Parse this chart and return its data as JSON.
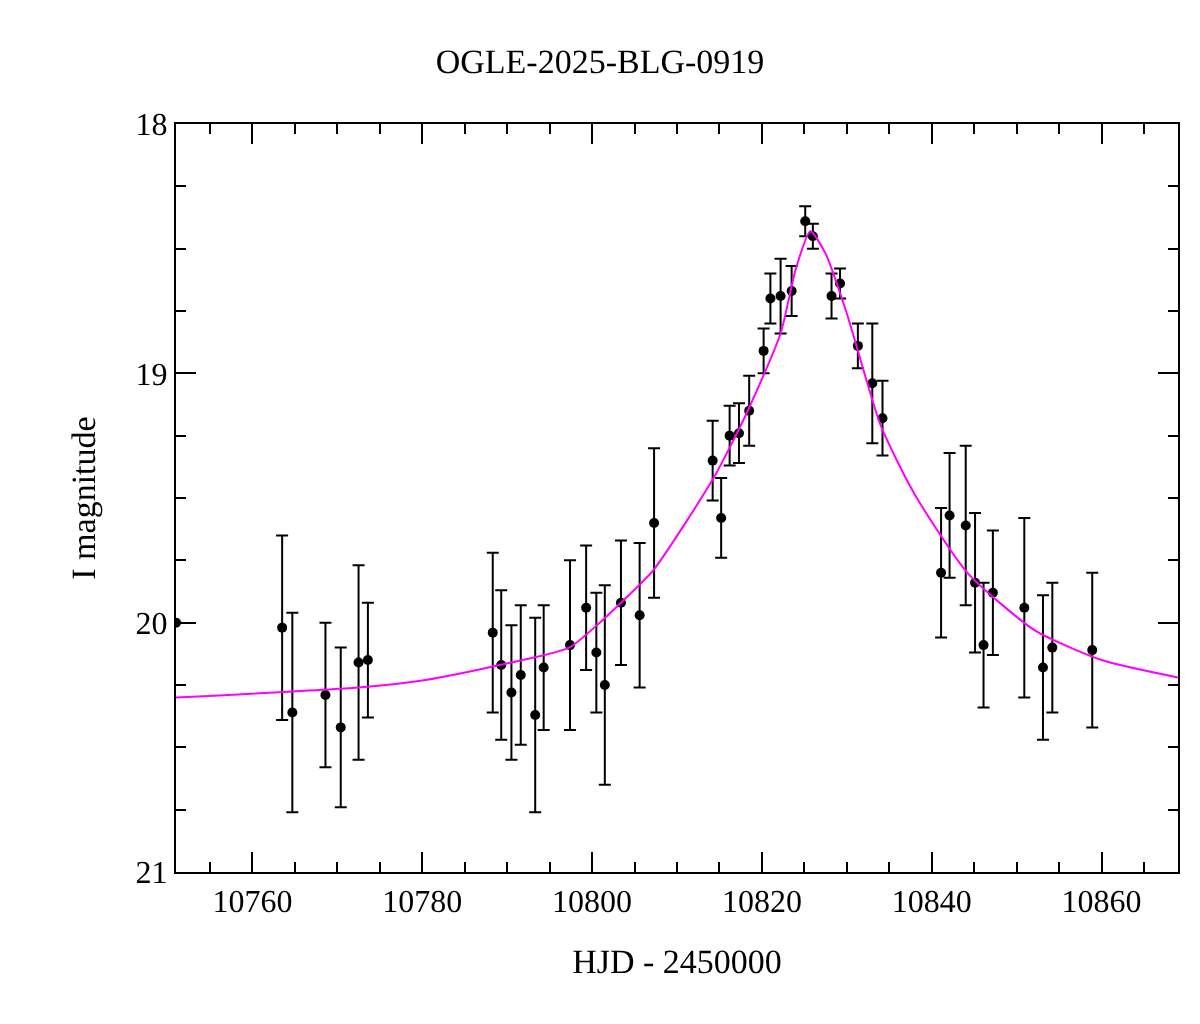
{
  "chart_data": {
    "type": "scatter",
    "title": "OGLE-2025-BLG-0919",
    "xlabel": "HJD - 2450000",
    "ylabel": "I magnitude",
    "xlim": [
      10751,
      10869
    ],
    "xticks": [
      10760,
      10780,
      10800,
      10820,
      10840,
      10860
    ],
    "ylim": [
      21,
      18
    ],
    "yticks": [
      18,
      19,
      20,
      21
    ],
    "marker": "circle",
    "series": [
      {
        "color": "#000000",
        "x": [
          10751,
          10763.5,
          10764.7,
          10768.6,
          10770.4,
          10772.5,
          10773.6,
          10788.3,
          10789.3,
          10790.5,
          10791.6,
          10793.3,
          10794.3,
          10797.4,
          10799.3,
          10800.5,
          10801.5,
          10803.4,
          10805.6,
          10807.3,
          10814.2,
          10815.2,
          10816.2,
          10817.3,
          10818.5,
          10820.2,
          10821.0,
          10822.2,
          10823.5,
          10825.1,
          10826.0,
          10828.2,
          10829.2,
          10831.3,
          10833.0,
          10834.2,
          10841.1,
          10842.1,
          10844.0,
          10845.1,
          10846.1,
          10847.2,
          10850.9,
          10853.1,
          10854.2,
          10858.9
        ],
        "values": [
          20.0,
          20.02,
          20.36,
          20.29,
          20.42,
          20.16,
          20.15,
          20.04,
          20.17,
          20.28,
          20.21,
          20.37,
          20.18,
          20.09,
          19.94,
          20.12,
          20.25,
          19.92,
          19.97,
          19.6,
          19.35,
          19.58,
          19.25,
          19.24,
          19.15,
          18.91,
          18.7,
          18.69,
          18.67,
          18.39,
          18.45,
          18.69,
          18.64,
          18.89,
          19.04,
          19.18,
          19.8,
          19.57,
          19.61,
          19.84,
          20.09,
          19.88,
          19.94,
          20.18,
          20.1,
          20.11
        ],
        "errors": [
          null,
          0.37,
          0.4,
          0.29,
          0.32,
          0.39,
          0.23,
          0.32,
          0.3,
          0.27,
          0.28,
          0.39,
          0.25,
          0.34,
          0.25,
          0.24,
          0.4,
          0.25,
          0.29,
          0.3,
          0.16,
          0.16,
          0.12,
          0.12,
          0.14,
          0.09,
          0.1,
          0.15,
          0.1,
          0.06,
          0.05,
          0.09,
          0.06,
          0.09,
          0.24,
          0.15,
          0.26,
          0.25,
          0.32,
          0.28,
          0.25,
          0.25,
          0.36,
          0.29,
          0.26,
          0.31
        ]
      },
      {
        "type": "line",
        "color": "#ff00ff",
        "marker": "none",
        "x": [
          10751,
          10772.5,
          10780.4,
          10789.1,
          10797.3,
          10800.9,
          10803.4,
          10807.2,
          10814.3,
          10818.2,
          10822.2,
          10824,
          10825.7,
          10827.5,
          10830,
          10834,
          10837.9,
          10844.2,
          10852.1,
          10860,
          10869
        ],
        "values": [
          20.3,
          20.26,
          20.23,
          20.17,
          20.1,
          20.0,
          19.92,
          19.79,
          19.42,
          19.16,
          18.84,
          18.58,
          18.43,
          18.52,
          18.76,
          19.21,
          19.48,
          19.8,
          20.03,
          20.15,
          20.22
        ]
      }
    ]
  }
}
